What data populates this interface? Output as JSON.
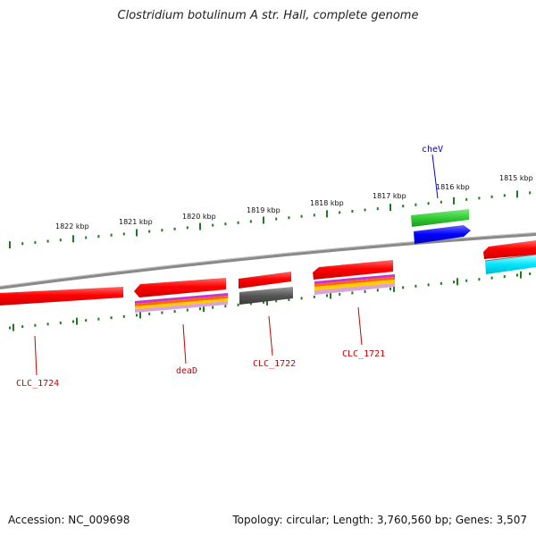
{
  "title": "Clostridium botulinum A str. Hall, complete genome",
  "footer": {
    "accession": "Accession: NC_009698",
    "summary": "Topology: circular; Length: 3,760,560 bp; Genes: 3,507"
  },
  "ruler": {
    "labels": [
      "1822 kbp",
      "1821 kbp",
      "1820 kbp",
      "1819 kbp",
      "1818 kbp",
      "1817 kbp",
      "1816 kbp",
      "1815 kbp"
    ],
    "tick_color": "#1e7a1e"
  },
  "gene_labels": [
    {
      "name": "cheV",
      "color": "#0000cc"
    },
    {
      "name": "CLC_1724",
      "color": "#cc0000"
    },
    {
      "name": "deaD",
      "color": "#cc0000"
    },
    {
      "name": "CLC_1722",
      "color": "#cc0000"
    },
    {
      "name": "CLC_1721",
      "color": "#cc0000"
    }
  ],
  "colors": {
    "backbone": "#808080",
    "cds": "#ff0000",
    "cheV_top": "#33cc33",
    "cheV_bottom": "#0000ff",
    "grey_feature": "#555555",
    "cyan_feature": "#00e5ff",
    "cog_stripes": [
      "#cc33cc",
      "#ff6600",
      "#ffcc00",
      "#cc99cc"
    ]
  }
}
